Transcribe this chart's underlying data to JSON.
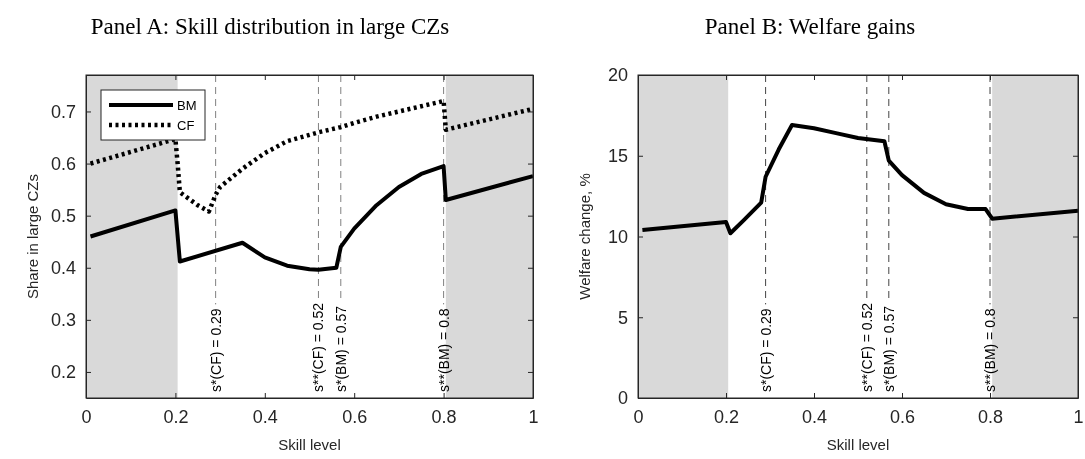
{
  "chart_data": [
    {
      "type": "line",
      "title": "Panel A: Skill distribution in large CZs",
      "xlabel": "Skill level",
      "ylabel": "Share in large CZs",
      "xlim": [
        0,
        1
      ],
      "ylim": [
        0.15,
        0.77
      ],
      "xticks": [
        0,
        0.2,
        0.4,
        0.6,
        0.8,
        1
      ],
      "yticks": [
        0.2,
        0.3,
        0.4,
        0.5,
        0.6,
        0.7
      ],
      "grid": false,
      "legend": "top left",
      "series": [
        {
          "name": "BM",
          "color": "#000000",
          "line_style": "solid",
          "x": [
            0.01,
            0.2,
            0.21,
            0.35,
            0.4,
            0.45,
            0.5,
            0.52,
            0.56,
            0.57,
            0.6,
            0.65,
            0.7,
            0.75,
            0.8,
            0.805,
            1
          ],
          "values": [
            0.46,
            0.51,
            0.412,
            0.448,
            0.42,
            0.404,
            0.397,
            0.396,
            0.4,
            0.44,
            0.475,
            0.52,
            0.555,
            0.58,
            0.595,
            0.53,
            0.576
          ]
        },
        {
          "name": "CF",
          "color": "#000000",
          "line_style": "dotted",
          "x": [
            0.01,
            0.2,
            0.205,
            0.21,
            0.25,
            0.275,
            0.29,
            0.3,
            0.35,
            0.4,
            0.45,
            0.5,
            0.52,
            0.57,
            0.6,
            0.65,
            0.7,
            0.75,
            0.8,
            0.805,
            1
          ],
          "values": [
            0.6,
            0.647,
            0.6,
            0.545,
            0.52,
            0.508,
            0.54,
            0.555,
            0.59,
            0.62,
            0.643,
            0.655,
            0.66,
            0.67,
            0.678,
            0.69,
            0.7,
            0.71,
            0.72,
            0.665,
            0.705
          ]
        }
      ],
      "bands": [
        {
          "axis": "x",
          "from": 0,
          "to": 0.205,
          "color": "#d9d9d9"
        },
        {
          "axis": "x",
          "from": 0.805,
          "to": 1,
          "color": "#d9d9d9"
        }
      ],
      "ref_lines": [
        {
          "axis": "x",
          "value": 0.29,
          "label": "s*(CF) = 0.29",
          "color": "#808080",
          "line_style": "dashed"
        },
        {
          "axis": "x",
          "value": 0.52,
          "label": "s**(CF) = 0.52",
          "color": "#808080",
          "line_style": "dashed"
        },
        {
          "axis": "x",
          "value": 0.57,
          "label": "s*(BM) = 0.57",
          "color": "#808080",
          "line_style": "dashed"
        },
        {
          "axis": "x",
          "value": 0.8,
          "label": "s**(BM) = 0.8",
          "color": "#808080",
          "line_style": "dashed"
        }
      ]
    },
    {
      "type": "line",
      "title": "Panel B: Welfare gains",
      "xlabel": "Skill level",
      "ylabel": "Welfare change, %",
      "xlim": [
        0,
        1
      ],
      "ylim": [
        0,
        20
      ],
      "xticks": [
        0,
        0.2,
        0.4,
        0.6,
        0.8,
        1
      ],
      "yticks": [
        0,
        5,
        10,
        15,
        20
      ],
      "grid": false,
      "legend": false,
      "series": [
        {
          "color": "#000000",
          "line_style": "solid",
          "x": [
            0.01,
            0.2,
            0.21,
            0.24,
            0.28,
            0.29,
            0.32,
            0.35,
            0.4,
            0.45,
            0.5,
            0.56,
            0.57,
            0.6,
            0.65,
            0.7,
            0.75,
            0.79,
            0.805,
            1
          ],
          "values": [
            10.4,
            10.9,
            10.2,
            11.0,
            12.1,
            13.7,
            15.4,
            16.9,
            16.7,
            16.4,
            16.1,
            15.9,
            14.7,
            13.8,
            12.7,
            12.0,
            11.7,
            11.7,
            11.1,
            11.6
          ]
        }
      ],
      "bands": [
        {
          "axis": "x",
          "from": 0,
          "to": 0.205,
          "color": "#d9d9d9"
        },
        {
          "axis": "x",
          "from": 0.805,
          "to": 1,
          "color": "#d9d9d9"
        }
      ],
      "ref_lines": [
        {
          "axis": "x",
          "value": 0.29,
          "label": "s*(CF) = 0.29",
          "color": "#444444",
          "line_style": "dashed"
        },
        {
          "axis": "x",
          "value": 0.52,
          "label": "s**(CF) = 0.52",
          "color": "#444444",
          "line_style": "dashed"
        },
        {
          "axis": "x",
          "value": 0.57,
          "label": "s*(BM) = 0.57",
          "color": "#444444",
          "line_style": "dashed"
        },
        {
          "axis": "x",
          "value": 0.8,
          "label": "s**(BM) = 0.8",
          "color": "#444444",
          "line_style": "dashed"
        }
      ]
    }
  ]
}
